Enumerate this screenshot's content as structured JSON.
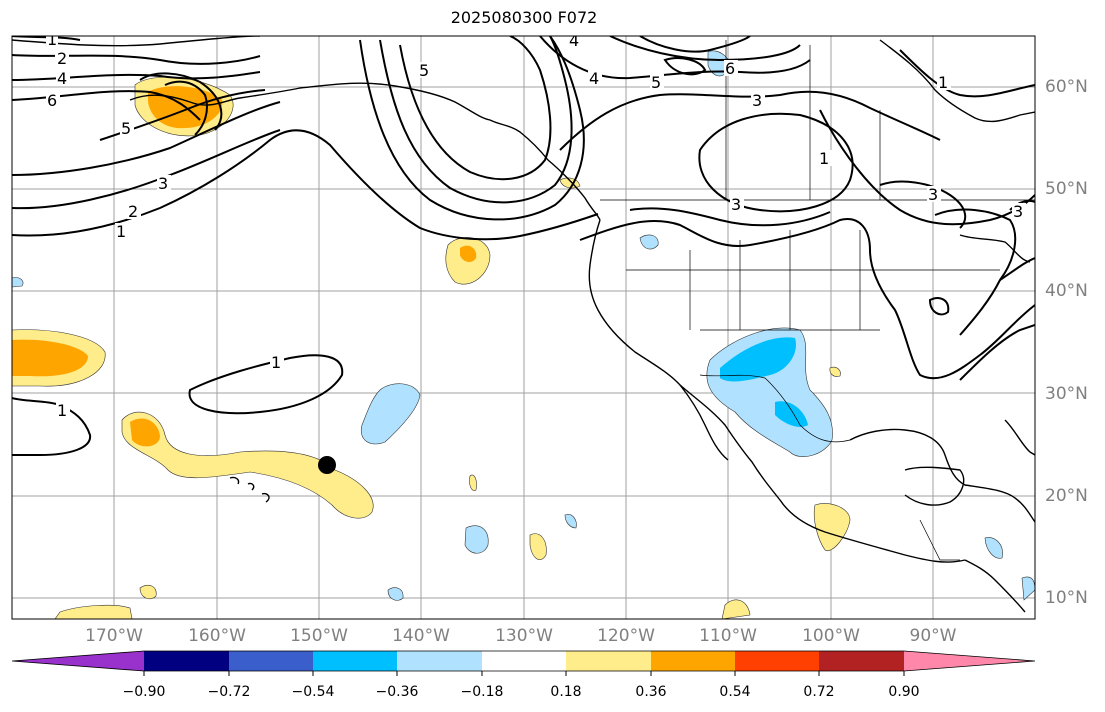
{
  "title": "2025080300 F072",
  "lon_labels": [
    "170°W",
    "160°W",
    "150°W",
    "140°W",
    "130°W",
    "120°W",
    "110°W",
    "100°W",
    "90°W"
  ],
  "lat_labels": [
    "60°N",
    "50°N",
    "40°N",
    "30°N",
    "20°N",
    "10°N"
  ],
  "contour_labels": {
    "c1": "1",
    "c2": "2",
    "c3": "4",
    "c4": "6",
    "c5": "5",
    "c6": "3",
    "c7": "2",
    "c8": "1",
    "c9": "4",
    "c10": "5",
    "c11": "4",
    "c12": "5",
    "c13": "6",
    "c14": "3",
    "c15": "1",
    "c16": "3",
    "c17": "3",
    "c18": "1",
    "c19": "3",
    "c20": "1",
    "c21": "1"
  },
  "colorbar": {
    "ticks": [
      "−0.90",
      "−0.72",
      "−0.54",
      "−0.36",
      "−0.18",
      "0.18",
      "0.36",
      "0.54",
      "0.72",
      "0.90"
    ],
    "colors": [
      "#9932cc",
      "#000080",
      "#3a5fcd",
      "#00bfff",
      "#b0e2ff",
      "#ffffff",
      "#ffec8b",
      "#ffa500",
      "#ff4000",
      "#b22222",
      "#ff88aa"
    ]
  },
  "marker": "black-dot"
}
